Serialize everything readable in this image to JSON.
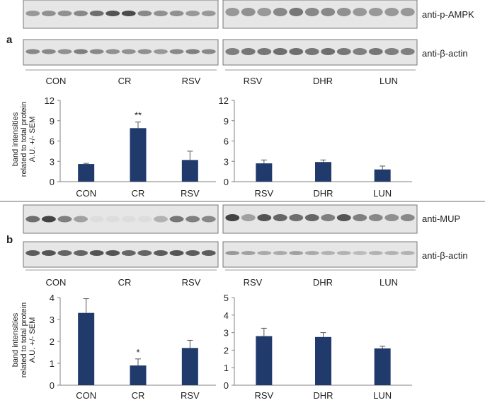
{
  "panels": [
    {
      "letter": "a",
      "blot_labels": [
        "anti-p-AMPK",
        "anti-β-actin"
      ],
      "group_labels_left": [
        "CON",
        "CR",
        "RSV"
      ],
      "group_labels_right": [
        "RSV",
        "DHR",
        "LUN"
      ],
      "ylabel_line1": "band intensities",
      "ylabel_line2": "related to total protein",
      "ylabel_line3": "A.U. +/- SEM"
    },
    {
      "letter": "b",
      "blot_labels": [
        "anti-MUP",
        "anti-β-actin"
      ],
      "group_labels_left": [
        "CON",
        "CR",
        "RSV"
      ],
      "group_labels_right": [
        "RSV",
        "DHR",
        "LUN"
      ],
      "ylabel_line1": "band intensities",
      "ylabel_line2": "related to total protein",
      "ylabel_line3": "A.U. +/- SEM"
    }
  ],
  "colors": {
    "bar": "#1f3a6b",
    "error_bar": "#555555",
    "band": "#3a3a3a"
  },
  "chart_data": [
    {
      "type": "bar",
      "panel": "a",
      "categories": [
        "CON",
        "CR",
        "RSV"
      ],
      "values": [
        2.6,
        7.9,
        3.2
      ],
      "errors": [
        0.1,
        0.9,
        1.3
      ],
      "annotations": [
        "",
        "**",
        ""
      ],
      "ylim": [
        0,
        12
      ],
      "yticks": [
        0,
        3,
        6,
        9,
        12
      ],
      "ylabel": "band intensities related to total protein A.U. +/- SEM"
    },
    {
      "type": "bar",
      "panel": "a",
      "categories": [
        "RSV",
        "DHR",
        "LUN"
      ],
      "values": [
        2.7,
        2.9,
        1.8
      ],
      "errors": [
        0.5,
        0.3,
        0.5
      ],
      "annotations": [
        "",
        "",
        ""
      ],
      "ylim": [
        0,
        12
      ],
      "yticks": [
        0,
        3,
        6,
        9,
        12
      ],
      "ylabel": ""
    },
    {
      "type": "bar",
      "panel": "b",
      "categories": [
        "CON",
        "CR",
        "RSV"
      ],
      "values": [
        3.3,
        0.9,
        1.7
      ],
      "errors": [
        0.65,
        0.3,
        0.35
      ],
      "annotations": [
        "",
        "*",
        ""
      ],
      "ylim": [
        0,
        4
      ],
      "yticks": [
        0,
        1,
        2,
        3,
        4
      ],
      "ylabel": "band intensities related to total protein A.U. +/- SEM"
    },
    {
      "type": "bar",
      "panel": "b",
      "categories": [
        "RSV",
        "DHR",
        "LUN"
      ],
      "values": [
        2.8,
        2.75,
        2.1
      ],
      "errors": [
        0.45,
        0.25,
        0.12
      ],
      "annotations": [
        "",
        "",
        ""
      ],
      "ylim": [
        0,
        5
      ],
      "yticks": [
        0,
        1,
        2,
        3,
        4,
        5
      ],
      "ylabel": ""
    }
  ]
}
